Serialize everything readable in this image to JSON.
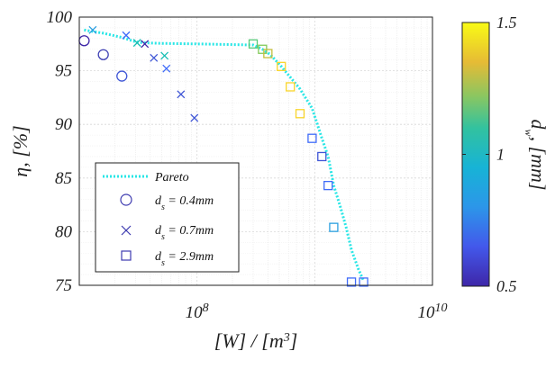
{
  "chart_data": {
    "type": "scatter",
    "xscale": "log",
    "xlim": [
      10000000.0,
      10000000000.0
    ],
    "ylim": [
      75,
      100
    ],
    "xticks": [
      {
        "v": 100000000.0,
        "base": "10",
        "exp": "8"
      },
      {
        "v": 10000000000.0,
        "base": "10",
        "exp": "10"
      }
    ],
    "yticks": [
      75,
      80,
      85,
      90,
      95,
      100
    ],
    "xlabel": {
      "pre": "[W] / [m",
      "sup": "3",
      "post": "]"
    },
    "ylabel": "η, [%]",
    "grid": true,
    "legend": {
      "placement": "bottom-left",
      "entries": [
        {
          "type": "line",
          "label": "Pareto"
        },
        {
          "type": "circle",
          "label_pre": "d",
          "label_sub": "s",
          "label_post": " = 0.4mm"
        },
        {
          "type": "x",
          "label_pre": "d",
          "label_sub": "s",
          "label_post": " = 0.7mm"
        },
        {
          "type": "square",
          "label_pre": "d",
          "label_sub": "s",
          "label_post": " = 2.9mm"
        }
      ]
    },
    "colorbar": {
      "label_pre": "d",
      "label_sub": "w",
      "label_post": ", [mm]",
      "min": 0.5,
      "max": 1.5,
      "ticks": [
        "1.5",
        "1",
        "0.5"
      ],
      "colors": [
        "#3e26a8",
        "#3f6bf9",
        "#1ea7dd",
        "#17beb3",
        "#58cb7a",
        "#c4be3c",
        "#f9d52b",
        "#f9fb15"
      ]
    },
    "pareto": {
      "color": "#29e6e6",
      "x": [
        11000000.0,
        16000000.0,
        23000000.0,
        30000000.0,
        35000000.0,
        50000000.0,
        100000000.0,
        300000000.0,
        360000000.0,
        420000000.0,
        520000000.0,
        620000000.0,
        750000000.0,
        950000000.0,
        1150000000.0,
        1300000000.0,
        1450000000.0,
        1650000000.0,
        1850000000.0,
        2050000000.0,
        2350000000.0,
        2600000000.0
      ],
      "y": [
        98.8,
        98.5,
        98.1,
        97.7,
        97.6,
        97.55,
        97.5,
        97.4,
        97.0,
        96.5,
        95.4,
        94.4,
        93.3,
        91.5,
        88.7,
        87.0,
        84.3,
        82.3,
        80.4,
        78.3,
        76.5,
        75.4
      ]
    },
    "series": [
      {
        "marker": "circle",
        "x": [
          11000000.0,
          16000000.0,
          23000000.0
        ],
        "y": [
          97.8,
          96.5,
          94.5
        ],
        "color": [
          "#3e26a8",
          "#4042b5",
          "#3f56d6"
        ]
      },
      {
        "marker": "x",
        "x": [
          13000000.0,
          25000000.0,
          31000000.0,
          36000000.0,
          43000000.0,
          53000000.0,
          55000000.0,
          73000000.0,
          95000000.0
        ],
        "y": [
          98.8,
          98.3,
          97.6,
          97.5,
          96.2,
          96.4,
          95.2,
          92.8,
          90.6
        ],
        "color": [
          "#2a9fe0",
          "#3f6bf9",
          "#17beb3",
          "#3e26a8",
          "#3f56d6",
          "#17beb3",
          "#3f6bf9",
          "#3f56d6",
          "#3f56d6"
        ]
      },
      {
        "marker": "square",
        "x": [
          300000000.0,
          360000000.0,
          400000000.0,
          520000000.0,
          620000000.0,
          750000000.0,
          950000000.0,
          1150000000.0,
          1300000000.0,
          1450000000.0,
          2050000000.0,
          2600000000.0
        ],
        "y": [
          97.5,
          97.0,
          96.6,
          95.4,
          93.5,
          91.0,
          88.7,
          87.0,
          84.3,
          80.4,
          75.3,
          75.3
        ],
        "color": [
          "#58cb7a",
          "#82ca5a",
          "#c4be3c",
          "#f9d52b",
          "#f9d52b",
          "#f9d52b",
          "#3f6bf9",
          "#3f56d6",
          "#3f6bf9",
          "#2a9fe0",
          "#3f6bf9",
          "#3f6bf9"
        ]
      }
    ]
  }
}
